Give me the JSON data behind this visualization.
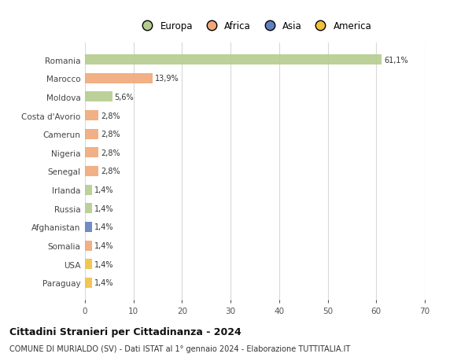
{
  "categories": [
    "Romania",
    "Marocco",
    "Moldova",
    "Costa d'Avorio",
    "Camerun",
    "Nigeria",
    "Senegal",
    "Irlanda",
    "Russia",
    "Afghanistan",
    "Somalia",
    "USA",
    "Paraguay"
  ],
  "values": [
    61.1,
    13.9,
    5.6,
    2.8,
    2.8,
    2.8,
    2.8,
    1.4,
    1.4,
    1.4,
    1.4,
    1.4,
    1.4
  ],
  "labels": [
    "61,1%",
    "13,9%",
    "5,6%",
    "2,8%",
    "2,8%",
    "2,8%",
    "2,8%",
    "1,4%",
    "1,4%",
    "1,4%",
    "1,4%",
    "1,4%",
    "1,4%"
  ],
  "colors": [
    "#b5cc8e",
    "#f0a878",
    "#b5cc8e",
    "#f0a878",
    "#f0a878",
    "#f0a878",
    "#f0a878",
    "#b5cc8e",
    "#b5cc8e",
    "#6080c0",
    "#f0a878",
    "#f0c040",
    "#f0c040"
  ],
  "legend_labels": [
    "Europa",
    "Africa",
    "Asia",
    "America"
  ],
  "legend_colors": [
    "#b5cc8e",
    "#f0a878",
    "#6080c0",
    "#f0c040"
  ],
  "xlim": [
    0,
    70
  ],
  "xticks": [
    0,
    10,
    20,
    30,
    40,
    50,
    60,
    70
  ],
  "title": "Cittadini Stranieri per Cittadinanza - 2024",
  "subtitle": "COMUNE DI MURIALDO (SV) - Dati ISTAT al 1° gennaio 2024 - Elaborazione TUTTITALIA.IT",
  "background_color": "#ffffff",
  "grid_color": "#d8d8d8",
  "bar_height": 0.55
}
